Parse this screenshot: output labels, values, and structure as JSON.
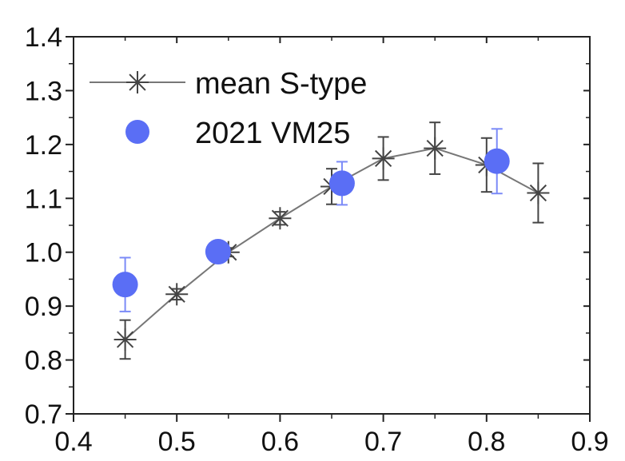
{
  "chart_data": {
    "type": "scatter",
    "title": "",
    "xlabel": "",
    "ylabel": "",
    "xlim": [
      0.4,
      0.9
    ],
    "ylim": [
      0.7,
      1.4
    ],
    "x_ticks": [
      "0.4",
      "0.5",
      "0.6",
      "0.7",
      "0.8",
      "0.9"
    ],
    "y_ticks": [
      "0.7",
      "0.8",
      "0.9",
      "1.0",
      "1.1",
      "1.2",
      "1.3",
      "1.4"
    ],
    "grid": false,
    "legend_position": "top-left",
    "series": [
      {
        "name": "mean S-type",
        "style": "line-star",
        "color": "#555555",
        "points": [
          {
            "x": 0.45,
            "y": 0.838,
            "err": 0.036
          },
          {
            "x": 0.5,
            "y": 0.922,
            "err": 0.01
          },
          {
            "x": 0.55,
            "y": 1.0,
            "err": 0.008
          },
          {
            "x": 0.6,
            "y": 1.063,
            "err": 0.012
          },
          {
            "x": 0.65,
            "y": 1.122,
            "err": 0.033
          },
          {
            "x": 0.7,
            "y": 1.174,
            "err": 0.04
          },
          {
            "x": 0.75,
            "y": 1.193,
            "err": 0.048
          },
          {
            "x": 0.8,
            "y": 1.162,
            "err": 0.05
          },
          {
            "x": 0.85,
            "y": 1.11,
            "err": 0.055
          }
        ]
      },
      {
        "name": "2021 VM25",
        "style": "dot",
        "color": "#5a6ef5",
        "points": [
          {
            "x": 0.45,
            "y": 0.94,
            "err": 0.05
          },
          {
            "x": 0.54,
            "y": 1.001,
            "err": 0.005
          },
          {
            "x": 0.66,
            "y": 1.128,
            "err": 0.04
          },
          {
            "x": 0.81,
            "y": 1.169,
            "err": 0.06
          }
        ]
      }
    ]
  }
}
